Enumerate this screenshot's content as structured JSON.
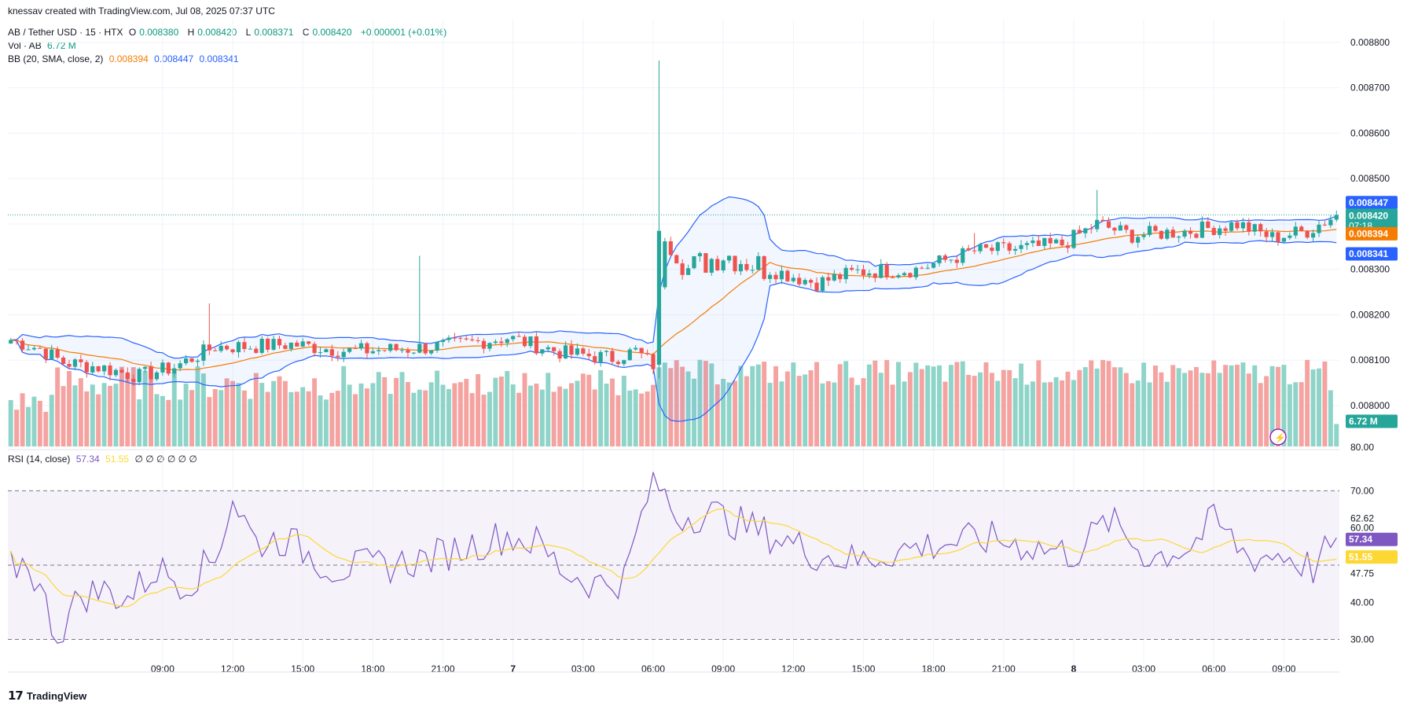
{
  "credit": "knessav created with TradingView.com, Jul 08, 2025 07:37 UTC",
  "symbol_line": {
    "name": "AB / Tether USD · 15 · HTX",
    "o_label": "O",
    "o": "0.008380",
    "h_label": "H",
    "h": "0.008420",
    "l_label": "L",
    "l": "0.008371",
    "c_label": "C",
    "c": "0.008420",
    "change": "+0.000001 (+0.01%)"
  },
  "vol_line": {
    "name": "Vol · AB",
    "value": "6.72 M"
  },
  "bb_line": {
    "name": "BB (20, SMA, close, 2)",
    "basis": "0.008394",
    "upper": "0.008447",
    "lower": "0.008341"
  },
  "rsi_line": {
    "name": "RSI (14, close)",
    "rsi": "57.34",
    "ma": "51.55",
    "empties": "∅ ∅ ∅ ∅ ∅ ∅"
  },
  "brand": "TradingView",
  "colors": {
    "up": "#26a69a",
    "down": "#ef5350",
    "bb_basis": "#f57c00",
    "bb_band": "#2962ff",
    "rsi": "#7e57c2",
    "rsi_ma": "#fdd835",
    "vol_up": "#8fd4c8",
    "vol_down": "#f4a3a1"
  },
  "chart_data": [
    {
      "type": "candlestick",
      "y_ticks": [
        "0.008000",
        "0.008100",
        "0.008200",
        "0.008300",
        "0.008400",
        "0.008500",
        "0.008600",
        "0.008700",
        "0.008800"
      ],
      "ylim": [
        0.00791,
        0.00885
      ],
      "x_ticks": [
        "09:00",
        "12:00",
        "15:00",
        "18:00",
        "21:00",
        "7",
        "03:00",
        "06:00",
        "09:00",
        "12:00",
        "15:00",
        "18:00",
        "21:00",
        "8",
        "03:00",
        "06:00",
        "09:00"
      ],
      "price_labels": {
        "upper": "0.008447",
        "close": "0.008420",
        "countdown": "07:18",
        "basis": "0.008394",
        "lower": "0.008341",
        "volume": "6.72 M",
        "bottom_partial": "80.00"
      },
      "close_line": 0.00842,
      "anchors": [
        {
          "i": 0,
          "c": 0.008145
        },
        {
          "i": 5,
          "c": 0.008125
        },
        {
          "i": 9,
          "c": 0.008095
        },
        {
          "i": 15,
          "c": 0.008085
        },
        {
          "i": 22,
          "c": 0.008065
        },
        {
          "i": 28,
          "c": 0.008085
        },
        {
          "i": 35,
          "c": 0.00813
        },
        {
          "i": 40,
          "c": 0.00813
        },
        {
          "i": 48,
          "c": 0.008135
        },
        {
          "i": 58,
          "c": 0.00812
        },
        {
          "i": 68,
          "c": 0.008125
        },
        {
          "i": 77,
          "c": 0.008135
        },
        {
          "i": 85,
          "c": 0.00815
        },
        {
          "i": 95,
          "c": 0.008115
        },
        {
          "i": 103,
          "c": 0.008105
        },
        {
          "i": 107,
          "c": 0.00812
        },
        {
          "i": 110,
          "c": 0.00809
        },
        {
          "i": 112,
          "c": 0.008385
        },
        {
          "i": 116,
          "c": 0.0083
        },
        {
          "i": 122,
          "c": 0.008335
        },
        {
          "i": 130,
          "c": 0.0083
        },
        {
          "i": 138,
          "c": 0.00827
        },
        {
          "i": 145,
          "c": 0.008295
        },
        {
          "i": 155,
          "c": 0.0083
        },
        {
          "i": 165,
          "c": 0.00834
        },
        {
          "i": 172,
          "c": 0.008345
        },
        {
          "i": 180,
          "c": 0.008355
        },
        {
          "i": 186,
          "c": 0.0084
        },
        {
          "i": 192,
          "c": 0.008375
        },
        {
          "i": 202,
          "c": 0.008385
        },
        {
          "i": 210,
          "c": 0.0084
        },
        {
          "i": 216,
          "c": 0.00837
        },
        {
          "i": 222,
          "c": 0.008385
        },
        {
          "i": 227,
          "c": 0.00842
        }
      ],
      "spikes": [
        {
          "i": 70,
          "h": 0.00833
        },
        {
          "i": 111,
          "h": 0.00876
        },
        {
          "i": 34,
          "h": 0.008225
        },
        {
          "i": 165,
          "h": 0.00838
        },
        {
          "i": 186,
          "h": 0.008475
        }
      ],
      "volume_ylim": [
        0,
        1.0
      ]
    },
    {
      "type": "line",
      "name": "RSI (14, close)",
      "y_ticks": [
        "30.00",
        "40.00",
        "47.75",
        "60.00",
        "62.62",
        "70.00"
      ],
      "ylim": [
        28,
        76
      ],
      "bands": [
        70,
        50,
        30
      ],
      "last_rsi": "57.34",
      "last_ma": "51.55",
      "rsi_anchors": [
        {
          "i": 0,
          "v": 49
        },
        {
          "i": 3,
          "v": 51
        },
        {
          "i": 8,
          "v": 31
        },
        {
          "i": 12,
          "v": 42
        },
        {
          "i": 16,
          "v": 43
        },
        {
          "i": 20,
          "v": 41
        },
        {
          "i": 25,
          "v": 49
        },
        {
          "i": 30,
          "v": 45
        },
        {
          "i": 35,
          "v": 52
        },
        {
          "i": 38,
          "v": 68
        },
        {
          "i": 42,
          "v": 56
        },
        {
          "i": 47,
          "v": 57
        },
        {
          "i": 52,
          "v": 52
        },
        {
          "i": 55,
          "v": 49
        },
        {
          "i": 65,
          "v": 50
        },
        {
          "i": 72,
          "v": 52
        },
        {
          "i": 78,
          "v": 55
        },
        {
          "i": 85,
          "v": 58
        },
        {
          "i": 90,
          "v": 56
        },
        {
          "i": 95,
          "v": 48
        },
        {
          "i": 100,
          "v": 45
        },
        {
          "i": 105,
          "v": 46
        },
        {
          "i": 110,
          "v": 74
        },
        {
          "i": 114,
          "v": 63
        },
        {
          "i": 120,
          "v": 64
        },
        {
          "i": 125,
          "v": 61
        },
        {
          "i": 132,
          "v": 57
        },
        {
          "i": 138,
          "v": 53
        },
        {
          "i": 145,
          "v": 51
        },
        {
          "i": 152,
          "v": 54
        },
        {
          "i": 160,
          "v": 56
        },
        {
          "i": 168,
          "v": 57
        },
        {
          "i": 175,
          "v": 55
        },
        {
          "i": 182,
          "v": 53
        },
        {
          "i": 188,
          "v": 62
        },
        {
          "i": 195,
          "v": 52
        },
        {
          "i": 202,
          "v": 55
        },
        {
          "i": 206,
          "v": 62
        },
        {
          "i": 212,
          "v": 52
        },
        {
          "i": 218,
          "v": 53
        },
        {
          "i": 223,
          "v": 49
        },
        {
          "i": 227,
          "v": 57.34
        }
      ]
    }
  ]
}
